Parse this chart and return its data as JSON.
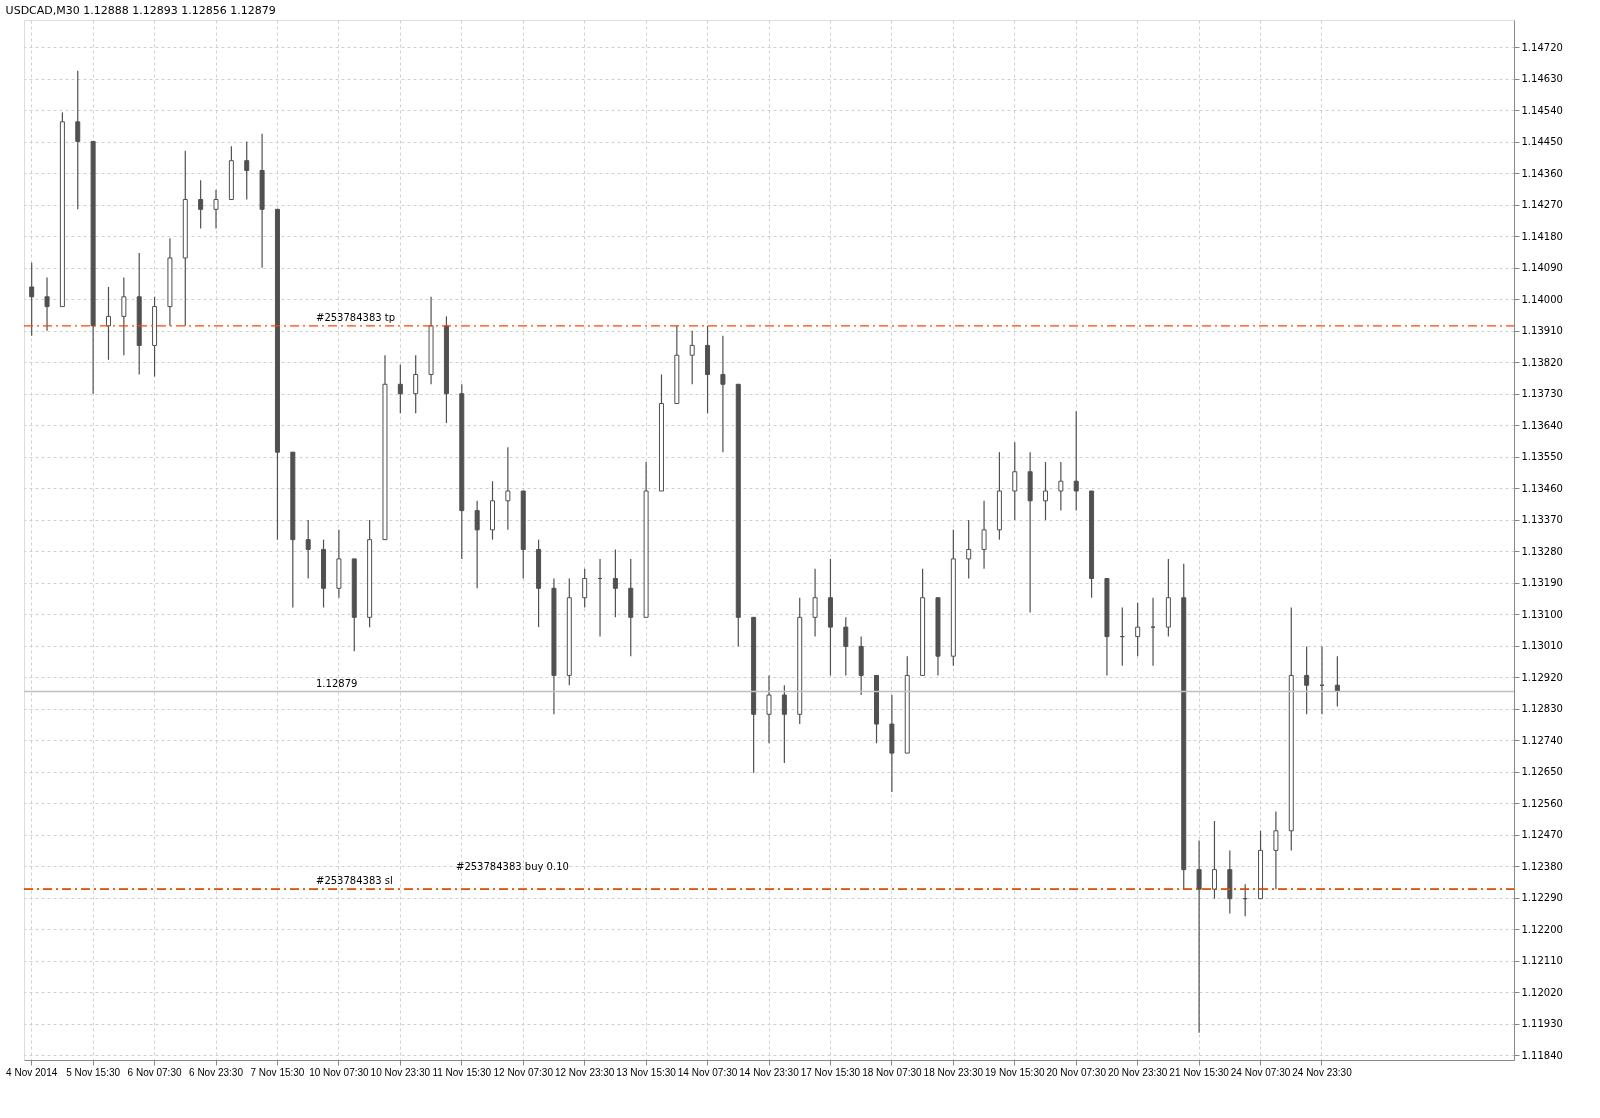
{
  "chart_data": {
    "type": "candlestick",
    "title": "USDCAD,M30 1.12888 1.12893 1.12856 1.12879",
    "color": "#505050",
    "categories": [
      "4 Nov 2014",
      null,
      null,
      null,
      "5 Nov 15:30",
      null,
      null,
      null,
      "6 Nov 07:30",
      null,
      null,
      null,
      "6 Nov 23:30",
      null,
      null,
      null,
      "7 Nov 15:30",
      null,
      null,
      null,
      "10 Nov 07:30",
      null,
      null,
      null,
      "10 Nov 23:30",
      null,
      null,
      null,
      "11 Nov 15:30",
      null,
      null,
      null,
      "12 Nov 07:30",
      null,
      null,
      null,
      "12 Nov 23:30",
      null,
      null,
      null,
      "13 Nov 15:30",
      null,
      null,
      null,
      "14 Nov 07:30",
      null,
      null,
      null,
      "14 Nov 23:30",
      null,
      null,
      null,
      "17 Nov 15:30",
      null,
      null,
      null,
      "18 Nov 07:30",
      null,
      null,
      null,
      "18 Nov 23:30",
      null,
      null,
      null,
      "19 Nov 15:30",
      null,
      null,
      null,
      "20 Nov 07:30",
      null,
      null,
      null,
      "20 Nov 23:30",
      null,
      null,
      null,
      "21 Nov 15:30",
      null,
      null,
      null,
      "24 Nov 07:30",
      null,
      null,
      null,
      "24 Nov 23:30",
      null,
      null,
      null,
      null,
      null,
      null,
      null,
      null,
      null,
      null,
      null,
      null
    ],
    "ohlc": [
      [
        1.14035,
        1.14104,
        1.13896,
        1.14007
      ],
      [
        1.14007,
        1.14062,
        1.1391,
        1.13979
      ],
      [
        1.13979,
        1.14534,
        1.13979,
        1.14507
      ],
      [
        1.14507,
        1.14653,
        1.14257,
        1.14451
      ],
      [
        1.14451,
        1.14451,
        1.1373,
        1.13924
      ],
      [
        1.13924,
        1.14035,
        1.13827,
        1.13951
      ],
      [
        1.13951,
        1.14062,
        1.1384,
        1.14007
      ],
      [
        1.14007,
        1.14132,
        1.13785,
        1.13868
      ],
      [
        1.13868,
        1.14007,
        1.13779,
        1.13979
      ],
      [
        1.13979,
        1.14174,
        1.13924,
        1.14118
      ],
      [
        1.14118,
        1.14424,
        1.13924,
        1.14285
      ],
      [
        1.14285,
        1.1434,
        1.14202,
        1.14257
      ],
      [
        1.14257,
        1.14313,
        1.14202,
        1.14285
      ],
      [
        1.14285,
        1.14437,
        1.14285,
        1.14396
      ],
      [
        1.14396,
        1.14451,
        1.14285,
        1.14368
      ],
      [
        1.14368,
        1.14473,
        1.1409,
        1.14257
      ],
      [
        1.14257,
        1.14257,
        1.13313,
        1.13563
      ],
      [
        1.13563,
        1.13563,
        1.13119,
        1.13313
      ],
      [
        1.13313,
        1.13369,
        1.13202,
        1.13285
      ],
      [
        1.13285,
        1.13313,
        1.13119,
        1.13174
      ],
      [
        1.13174,
        1.13341,
        1.13147,
        1.13258
      ],
      [
        1.13258,
        1.13258,
        1.12994,
        1.13091
      ],
      [
        1.13091,
        1.13369,
        1.13063,
        1.13313
      ],
      [
        1.13313,
        1.1384,
        1.13313,
        1.13757
      ],
      [
        1.13757,
        1.13813,
        1.13674,
        1.1373
      ],
      [
        1.1373,
        1.1384,
        1.13674,
        1.13785
      ],
      [
        1.13785,
        1.14007,
        1.13757,
        1.13924
      ],
      [
        1.13924,
        1.13951,
        1.13646,
        1.1373
      ],
      [
        1.1373,
        1.13757,
        1.13258,
        1.13396
      ],
      [
        1.13396,
        1.13424,
        1.13174,
        1.13341
      ],
      [
        1.13341,
        1.1348,
        1.13313,
        1.13424
      ],
      [
        1.13424,
        1.13577,
        1.13341,
        1.13452
      ],
      [
        1.13452,
        1.13452,
        1.13202,
        1.13285
      ],
      [
        1.13285,
        1.13313,
        1.13063,
        1.13174
      ],
      [
        1.13174,
        1.13202,
        1.12814,
        1.12925
      ],
      [
        1.12925,
        1.13202,
        1.12897,
        1.13147
      ],
      [
        1.13147,
        1.1323,
        1.13119,
        1.13202
      ],
      [
        1.13202,
        1.13258,
        1.13036,
        1.13202
      ],
      [
        1.13202,
        1.13285,
        1.13091,
        1.13174
      ],
      [
        1.13174,
        1.13258,
        1.1298,
        1.13091
      ],
      [
        1.13091,
        1.13535,
        1.13091,
        1.13452
      ],
      [
        1.13452,
        1.13785,
        1.13452,
        1.13702
      ],
      [
        1.13702,
        1.13924,
        1.13702,
        1.1384
      ],
      [
        1.1384,
        1.1391,
        1.13757,
        1.13868
      ],
      [
        1.13868,
        1.13924,
        1.13674,
        1.13785
      ],
      [
        1.13785,
        1.13896,
        1.13563,
        1.13757
      ],
      [
        1.13757,
        1.13757,
        1.13008,
        1.13091
      ],
      [
        1.13091,
        1.13091,
        1.12647,
        1.12814
      ],
      [
        1.12814,
        1.12925,
        1.12731,
        1.12869
      ],
      [
        1.12869,
        1.12897,
        1.12675,
        1.12814
      ],
      [
        1.12814,
        1.13147,
        1.12786,
        1.13091
      ],
      [
        1.13091,
        1.1323,
        1.13036,
        1.13147
      ],
      [
        1.13147,
        1.13258,
        1.12925,
        1.13063
      ],
      [
        1.13063,
        1.13091,
        1.12925,
        1.13008
      ],
      [
        1.13008,
        1.13036,
        1.12869,
        1.12925
      ],
      [
        1.12925,
        1.12925,
        1.12731,
        1.12786
      ],
      [
        1.12786,
        1.12869,
        1.12592,
        1.12703
      ],
      [
        1.12703,
        1.1298,
        1.12703,
        1.12925
      ],
      [
        1.12925,
        1.1323,
        1.12925,
        1.13147
      ],
      [
        1.13147,
        1.13147,
        1.12925,
        1.1298
      ],
      [
        1.1298,
        1.13341,
        1.12953,
        1.13258
      ],
      [
        1.13258,
        1.13369,
        1.13202,
        1.13285
      ],
      [
        1.13285,
        1.13424,
        1.1323,
        1.13341
      ],
      [
        1.13341,
        1.13563,
        1.13313,
        1.13452
      ],
      [
        1.13452,
        1.13591,
        1.13369,
        1.13507
      ],
      [
        1.13507,
        1.13563,
        1.13105,
        1.13424
      ],
      [
        1.13424,
        1.13535,
        1.13369,
        1.13452
      ],
      [
        1.13452,
        1.13535,
        1.13396,
        1.1348
      ],
      [
        1.1348,
        1.1368,
        1.13396,
        1.13452
      ],
      [
        1.13452,
        1.13452,
        1.13147,
        1.13202
      ],
      [
        1.13202,
        1.13202,
        1.12925,
        1.13036
      ],
      [
        1.13036,
        1.13119,
        1.12953,
        1.13036
      ],
      [
        1.13036,
        1.13133,
        1.1298,
        1.13063
      ],
      [
        1.13063,
        1.13147,
        1.12953,
        1.13063
      ],
      [
        1.13063,
        1.13258,
        1.13036,
        1.13147
      ],
      [
        1.13147,
        1.13244,
        1.12314,
        1.1237
      ],
      [
        1.1237,
        1.12453,
        1.11904,
        1.12314
      ],
      [
        1.12314,
        1.12509,
        1.12287,
        1.1237
      ],
      [
        1.1237,
        1.12425,
        1.12245,
        1.12287
      ],
      [
        1.12287,
        1.12328,
        1.12237,
        1.12287
      ],
      [
        1.12287,
        1.12481,
        1.12287,
        1.12425
      ],
      [
        1.12425,
        1.12536,
        1.12314,
        1.12481
      ],
      [
        1.12481,
        1.13119,
        1.12425,
        1.12925
      ],
      [
        1.12925,
        1.13008,
        1.12814,
        1.12897
      ],
      [
        1.12897,
        1.13008,
        1.12814,
        1.12897
      ],
      [
        1.12897,
        1.1298,
        1.12836,
        1.12879
      ],
      null,
      null,
      null,
      null,
      null,
      null,
      null,
      null,
      null,
      null,
      null
    ],
    "ylim": [
      1.11826,
      1.14798
    ],
    "yticks": [
      {
        "value": 1.1184,
        "label": "1.11840"
      },
      {
        "value": 1.1193,
        "label": "1.11930"
      },
      {
        "value": 1.1202,
        "label": "1.12020"
      },
      {
        "value": 1.1211,
        "label": "1.12110"
      },
      {
        "value": 1.122,
        "label": "1.12200"
      },
      {
        "value": 1.1229,
        "label": "1.12290"
      },
      {
        "value": 1.1238,
        "label": "1.12380"
      },
      {
        "value": 1.1247,
        "label": "1.12470"
      },
      {
        "value": 1.1256,
        "label": "1.12560"
      },
      {
        "value": 1.1265,
        "label": "1.12650"
      },
      {
        "value": 1.1274,
        "label": "1.12740"
      },
      {
        "value": 1.1283,
        "label": "1.12830"
      },
      {
        "value": 1.1292,
        "label": "1.12920"
      },
      {
        "value": 1.1301,
        "label": "1.13010"
      },
      {
        "value": 1.131,
        "label": "1.13100"
      },
      {
        "value": 1.1319,
        "label": "1.13190"
      },
      {
        "value": 1.1328,
        "label": "1.13280"
      },
      {
        "value": 1.1337,
        "label": "1.13370"
      },
      {
        "value": 1.1346,
        "label": "1.13460"
      },
      {
        "value": 1.1355,
        "label": "1.13550"
      },
      {
        "value": 1.1364,
        "label": "1.13640"
      },
      {
        "value": 1.1373,
        "label": "1.13730"
      },
      {
        "value": 1.1382,
        "label": "1.13820"
      },
      {
        "value": 1.1391,
        "label": "1.13910"
      },
      {
        "value": 1.14,
        "label": "1.14000"
      },
      {
        "value": 1.1409,
        "label": "1.14090"
      },
      {
        "value": 1.1418,
        "label": "1.14180"
      },
      {
        "value": 1.1427,
        "label": "1.14270"
      },
      {
        "value": 1.1436,
        "label": "1.14360"
      },
      {
        "value": 1.1445,
        "label": "1.14450"
      },
      {
        "value": 1.1454,
        "label": "1.14540"
      },
      {
        "value": 1.1463,
        "label": "1.14630"
      },
      {
        "value": 1.1472,
        "label": "1.14720"
      }
    ],
    "ref_lines": [
      {
        "axis": "y",
        "value": 1.13924,
        "label": "#253784383 tp",
        "color": "#ff4500",
        "line_style": "dashed"
      },
      {
        "axis": "y",
        "value": 1.12314,
        "label": "#253784383 sl",
        "color": "#008000",
        "line_style": "dashed"
      },
      {
        "axis": "y",
        "value": 1.12314,
        "label": "#253784383 buy 0.10",
        "color": "#ff4500",
        "line_style": "dashed"
      },
      {
        "axis": "y",
        "value": 1.12879,
        "label": "1.12879",
        "color": "#c0c0c0",
        "line_style": "solid"
      }
    ],
    "grid": true
  }
}
